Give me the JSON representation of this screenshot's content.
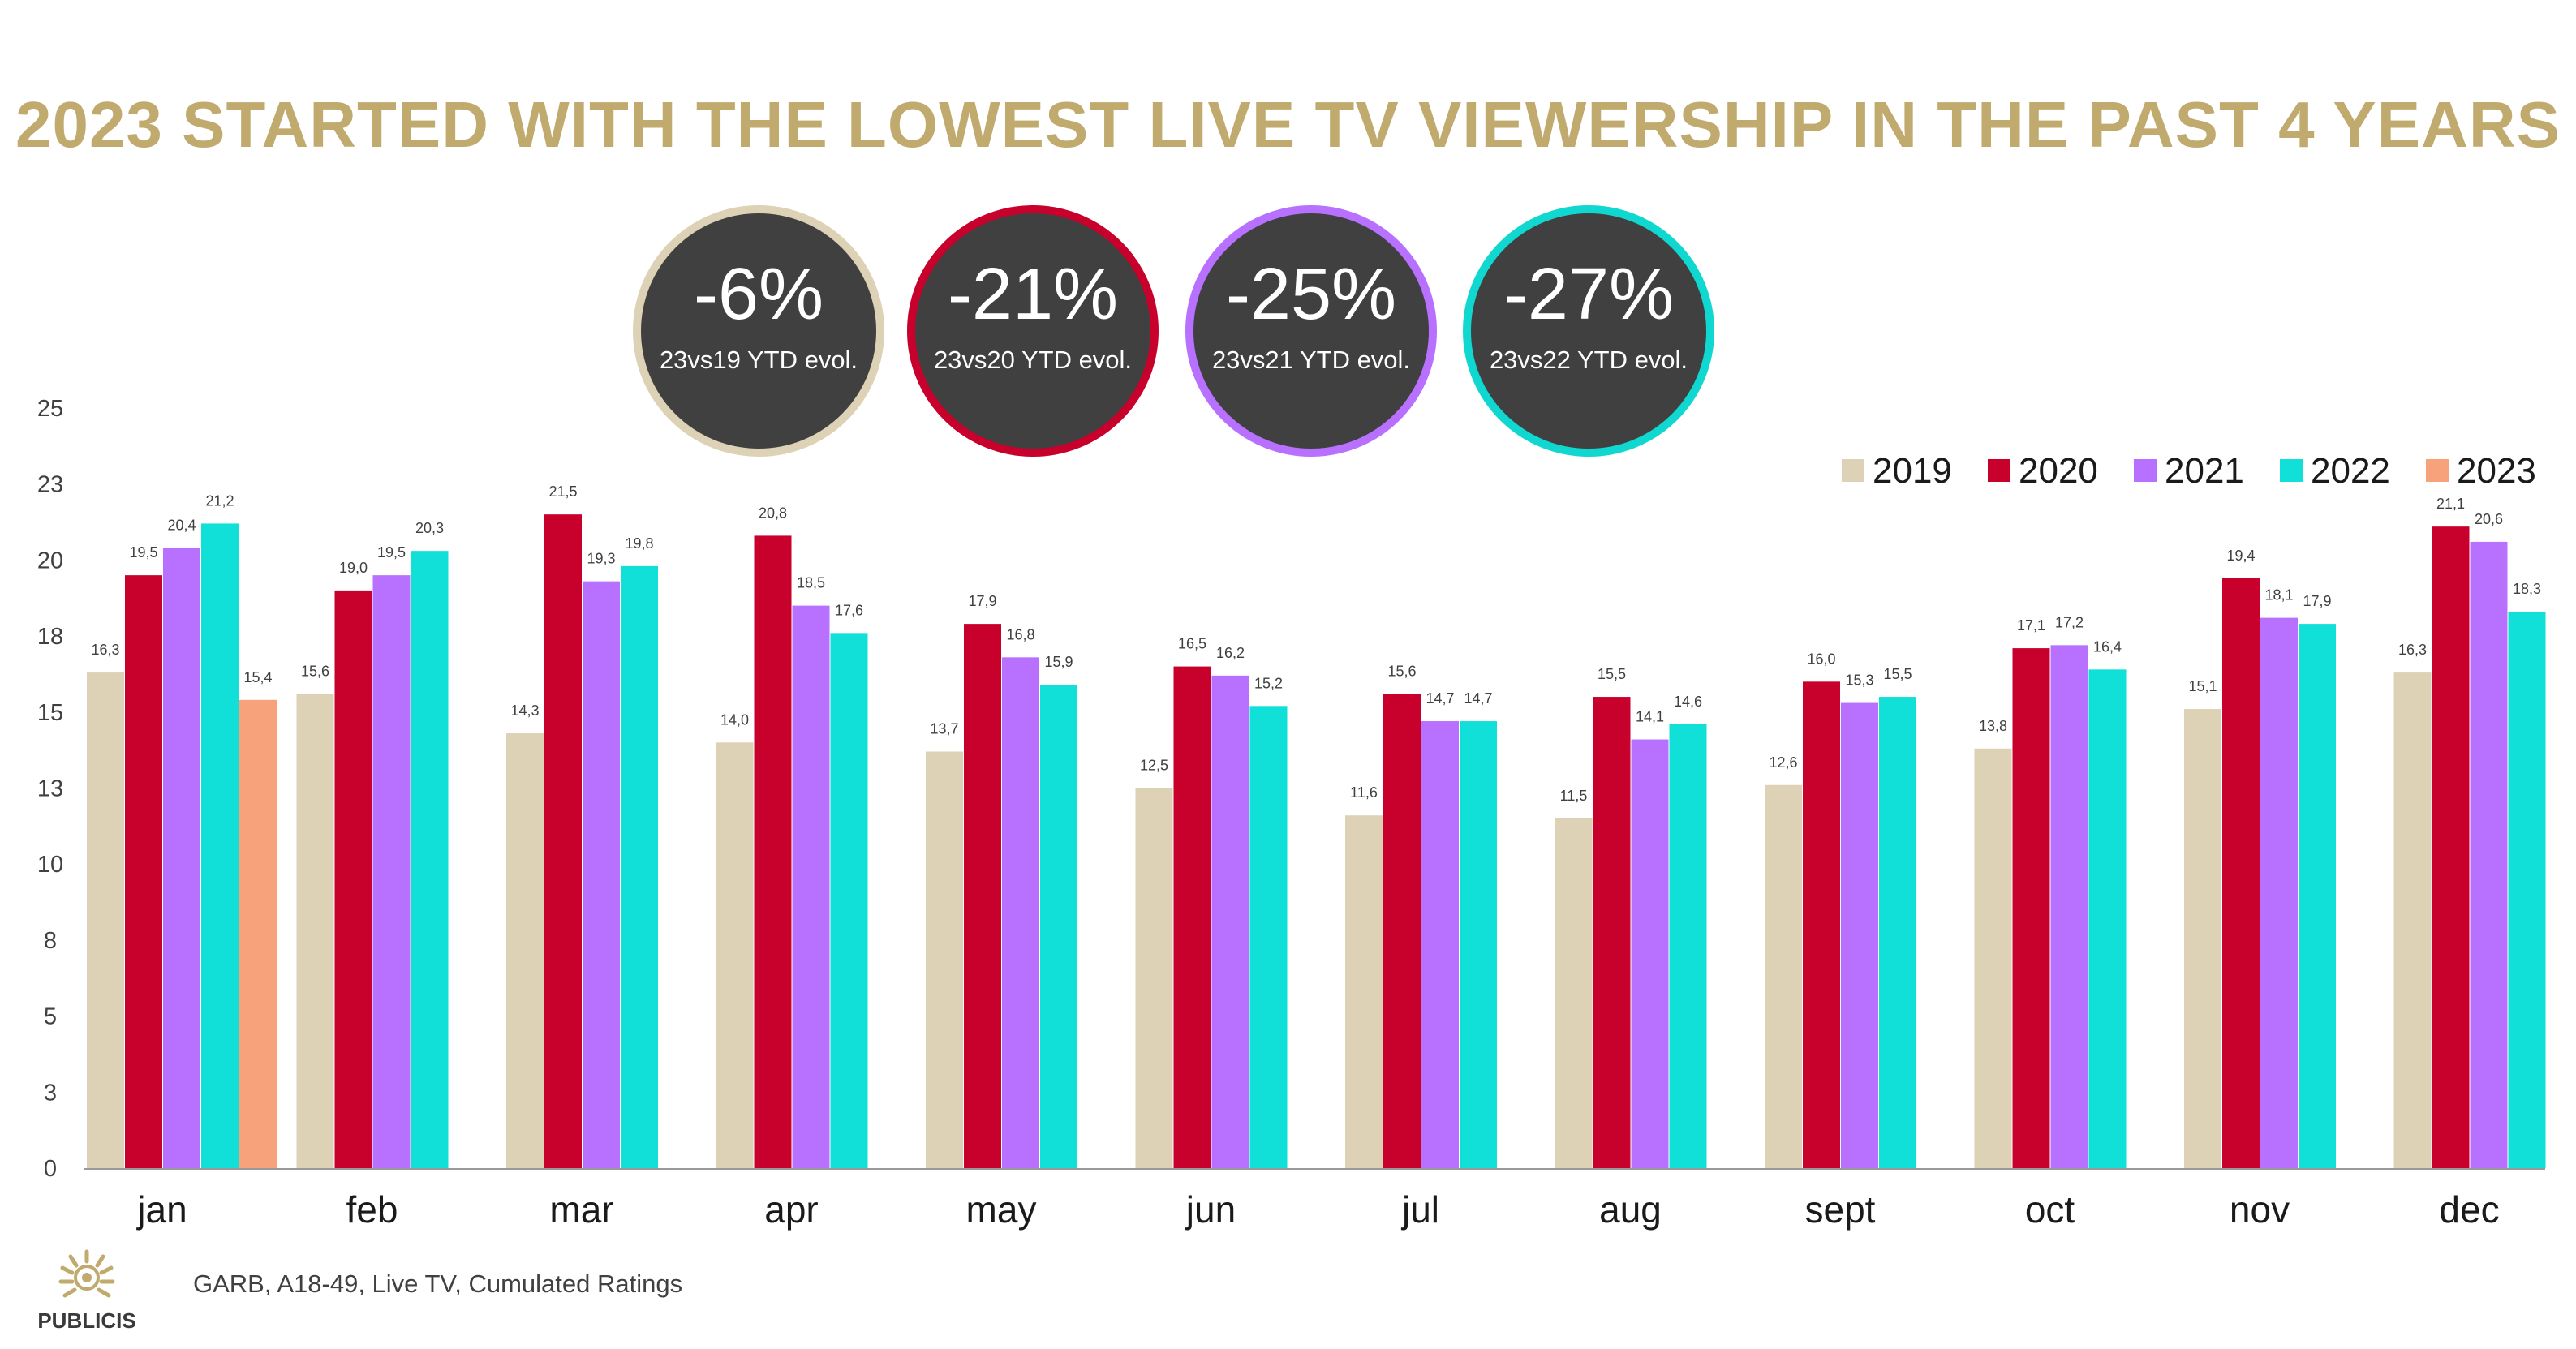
{
  "title": "2023 STARTED WITH THE LOWEST LIVE TV VIEWERSHIP IN THE PAST 4 YEARS",
  "kpis": [
    {
      "value": "-6%",
      "label": "23vs19 YTD evol.",
      "ring_color": "#ddd2b5"
    },
    {
      "value": "-21%",
      "label": "23vs20 YTD evol.",
      "ring_color": "#c8002c"
    },
    {
      "value": "-25%",
      "label": "23vs21 YTD evol.",
      "ring_color": "#b870ff"
    },
    {
      "value": "-27%",
      "label": "23vs22 YTD evol.",
      "ring_color": "#10d8d0"
    }
  ],
  "source": "GARB, A18-49, Live TV, Cumulated Ratings",
  "logo": {
    "text": "PUBLICIS",
    "icon": "lion-head-icon"
  },
  "chart_data": {
    "type": "bar",
    "categories": [
      "jan",
      "feb",
      "mar",
      "apr",
      "may",
      "jun",
      "jul",
      "aug",
      "sept",
      "oct",
      "nov",
      "dec"
    ],
    "y_ticks": [
      "0",
      "3",
      "5",
      "8",
      "10",
      "13",
      "15",
      "18",
      "20",
      "23",
      "25"
    ],
    "ylim": [
      0,
      25
    ],
    "grid": false,
    "legend_position": "top-right",
    "series": [
      {
        "name": "2019",
        "color": "#ddd2b5",
        "values": [
          16.3,
          15.6,
          14.3,
          14.0,
          13.7,
          12.5,
          11.6,
          11.5,
          12.6,
          13.8,
          15.1,
          16.3
        ],
        "labels": [
          "16,3",
          "15,6",
          "14,3",
          "14,0",
          "13,7",
          "12,5",
          "11,6",
          "11,5",
          "12,6",
          "13,8",
          "15,1",
          "16,3"
        ]
      },
      {
        "name": "2020",
        "color": "#c8002c",
        "values": [
          19.5,
          19.0,
          21.5,
          20.8,
          17.9,
          16.5,
          15.6,
          15.5,
          16.0,
          17.1,
          19.4,
          21.1
        ],
        "labels": [
          "19,5",
          "19,0",
          "21,5",
          "20,8",
          "17,9",
          "16,5",
          "15,6",
          "15,5",
          "16,0",
          "17,1",
          "19,4",
          "21,1"
        ]
      },
      {
        "name": "2021",
        "color": "#b870ff",
        "values": [
          20.4,
          19.5,
          19.3,
          18.5,
          16.8,
          16.2,
          14.7,
          14.1,
          15.3,
          17.2,
          18.1,
          20.6
        ],
        "labels": [
          "20,4",
          "19,5",
          "19,3",
          "18,5",
          "16,8",
          "16,2",
          "14,7",
          "14,1",
          "15,3",
          "17,2",
          "18,1",
          "20,6"
        ]
      },
      {
        "name": "2022",
        "color": "#10e0d8",
        "values": [
          21.2,
          20.3,
          19.8,
          17.6,
          15.9,
          15.2,
          14.7,
          14.6,
          15.5,
          16.4,
          17.9,
          18.3
        ],
        "labels": [
          "21,2",
          "20,3",
          "19,8",
          "17,6",
          "15,9",
          "15,2",
          "14,7",
          "14,6",
          "15,5",
          "16,4",
          "17,9",
          "18,3"
        ]
      },
      {
        "name": "2023",
        "color": "#f8a27c",
        "values": [
          15.4,
          null,
          null,
          null,
          null,
          null,
          null,
          null,
          null,
          null,
          null,
          null
        ],
        "labels": [
          "15,4",
          "",
          "",
          "",
          "",
          "",
          "",
          "",
          "",
          "",
          "",
          ""
        ]
      }
    ]
  }
}
